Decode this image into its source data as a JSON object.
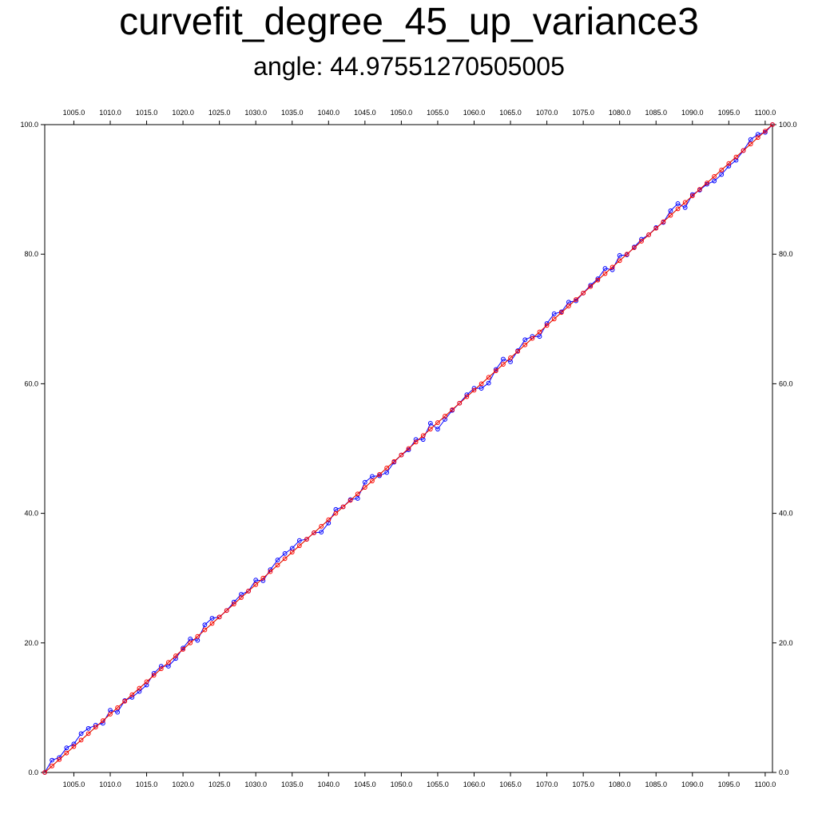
{
  "title": "curvefit_degree_45_up_variance3",
  "subtitle": "angle: 44.97551270505005",
  "chart_data": {
    "type": "line",
    "xlim": [
      1001,
      1101
    ],
    "ylim": [
      0,
      100
    ],
    "x_ticks": [
      1005,
      1010,
      1015,
      1020,
      1025,
      1030,
      1035,
      1040,
      1045,
      1050,
      1055,
      1060,
      1065,
      1070,
      1075,
      1080,
      1085,
      1090,
      1095,
      1100
    ],
    "y_ticks": [
      0,
      20,
      40,
      60,
      80,
      100
    ],
    "tick_format_decimals": 1,
    "grid": false,
    "legend": "none",
    "x_start": 1001,
    "x_step": 1,
    "series": [
      {
        "color": "#0000ff",
        "marker": "circle",
        "values": [
          0.0,
          1.9,
          2.3,
          3.8,
          4.4,
          6.0,
          6.8,
          7.3,
          7.6,
          9.6,
          9.3,
          11.1,
          11.6,
          12.5,
          13.5,
          15.3,
          16.4,
          16.4,
          17.6,
          19.2,
          20.6,
          20.4,
          22.8,
          23.8,
          24.0,
          25.0,
          26.3,
          27.5,
          28.0,
          29.7,
          29.6,
          31.3,
          32.8,
          33.8,
          34.6,
          35.8,
          36.0,
          37.0,
          37.1,
          38.5,
          40.6,
          41.0,
          42.1,
          42.3,
          44.8,
          45.7,
          45.8,
          46.3,
          47.9,
          49.0,
          49.8,
          51.4,
          51.4,
          53.9,
          53.0,
          54.5,
          55.9,
          57.0,
          58.3,
          59.3,
          59.3,
          60.1,
          62.2,
          63.8,
          63.4,
          65.1,
          66.8,
          67.3,
          67.3,
          69.3,
          70.8,
          71.1,
          72.6,
          72.8,
          74.0,
          75.2,
          76.2,
          77.8,
          77.6,
          79.8,
          79.9,
          81.1,
          82.3,
          83.0,
          84.1,
          84.9,
          86.7,
          87.8,
          87.2,
          89.2,
          89.9,
          90.8,
          91.3,
          92.3,
          93.6,
          94.5,
          96.0,
          97.7,
          98.5,
          98.8,
          100.0
        ]
      },
      {
        "color": "#ff0000",
        "marker": "circle",
        "values": [
          0.0,
          1.0,
          2.0,
          3.0,
          4.0,
          5.0,
          6.0,
          7.0,
          8.0,
          9.0,
          10.0,
          11.0,
          12.0,
          13.0,
          14.0,
          15.0,
          16.0,
          17.0,
          18.0,
          19.0,
          20.0,
          21.0,
          22.0,
          23.0,
          24.0,
          25.0,
          26.0,
          27.0,
          28.0,
          29.0,
          30.0,
          31.0,
          32.0,
          33.0,
          34.0,
          35.0,
          36.0,
          37.0,
          38.0,
          39.0,
          40.0,
          41.0,
          42.0,
          43.0,
          44.0,
          45.0,
          46.0,
          47.0,
          48.0,
          49.0,
          50.0,
          51.0,
          52.0,
          53.0,
          54.0,
          55.0,
          56.0,
          57.0,
          58.0,
          59.0,
          60.0,
          61.0,
          62.0,
          63.0,
          64.0,
          65.0,
          66.0,
          67.0,
          68.0,
          69.0,
          70.0,
          71.0,
          72.0,
          73.0,
          74.0,
          75.0,
          76.0,
          77.0,
          78.0,
          79.0,
          80.0,
          81.0,
          82.0,
          83.0,
          84.0,
          85.0,
          86.0,
          87.0,
          88.0,
          89.0,
          90.0,
          91.0,
          92.0,
          93.0,
          94.0,
          95.0,
          96.0,
          97.0,
          98.0,
          99.0,
          100.0
        ]
      },
      {
        "color": "#00c000",
        "marker": "none",
        "values": [
          0.0,
          1.0,
          2.0,
          3.0,
          4.0,
          5.0,
          6.0,
          7.0,
          8.0,
          9.0,
          10.0,
          11.0,
          12.0,
          13.0,
          14.0,
          15.0,
          16.0,
          17.0,
          18.0,
          19.0,
          20.0,
          21.0,
          22.0,
          23.0,
          24.0,
          25.0,
          26.0,
          27.0,
          28.0,
          29.0,
          30.0,
          31.0,
          32.0,
          33.0,
          34.0,
          35.0,
          36.0,
          37.0,
          38.0,
          39.0,
          40.0,
          41.0,
          42.0,
          43.0,
          44.0,
          45.0,
          46.0,
          47.0,
          48.0,
          49.0,
          50.0,
          51.0,
          52.0,
          53.0,
          54.0,
          55.0,
          56.0,
          57.0,
          58.0,
          59.0,
          60.0,
          61.0,
          62.0,
          63.0,
          64.0,
          65.0,
          66.0,
          67.0,
          68.0,
          69.0,
          70.0,
          71.0,
          72.0,
          73.0,
          74.0,
          75.0,
          76.0,
          77.0,
          78.0,
          79.0,
          80.0,
          81.0,
          82.0,
          83.0,
          84.0,
          85.0,
          86.0,
          87.0,
          88.0,
          89.0,
          90.0,
          91.0,
          92.0,
          93.0,
          94.0,
          95.0,
          96.0,
          97.0,
          98.0,
          99.0,
          100.0
        ]
      }
    ]
  }
}
